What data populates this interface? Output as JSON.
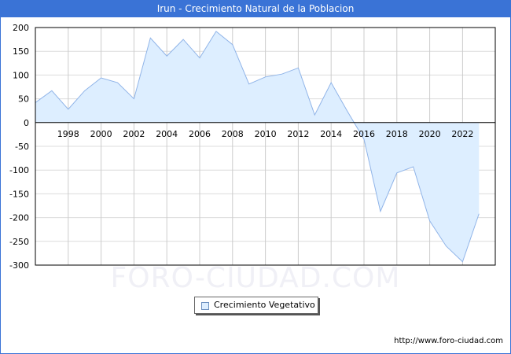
{
  "header": {
    "title": "Irun - Crecimiento Natural de la Poblacion"
  },
  "watermark": "FORO-CIUDAD.COM",
  "footer": {
    "url": "http://www.foro-ciudad.com"
  },
  "legend": {
    "label": "Crecimiento Vegetativo"
  },
  "colors": {
    "titlebar": "#3a73d6",
    "line": "#90b4e8",
    "fill": "#ddeeff"
  },
  "chart_data": {
    "type": "area",
    "title": "Irun - Crecimiento Natural de la Poblacion",
    "xlabel": "",
    "ylabel": "",
    "ylim": [
      -300,
      200
    ],
    "yticks": [
      200,
      150,
      100,
      50,
      0,
      -50,
      -100,
      -150,
      -200,
      -250,
      -300
    ],
    "xticks": [
      1998,
      2000,
      2002,
      2004,
      2006,
      2008,
      2010,
      2012,
      2014,
      2016,
      2018,
      2020,
      2022
    ],
    "grid": true,
    "legend_position": "bottom",
    "series": [
      {
        "name": "Crecimiento Vegetativo",
        "x": [
          1996,
          1997,
          1998,
          1999,
          2000,
          2001,
          2002,
          2003,
          2004,
          2005,
          2006,
          2007,
          2008,
          2009,
          2010,
          2011,
          2012,
          2013,
          2014,
          2015,
          2016,
          2017,
          2018,
          2019,
          2020,
          2021,
          2022,
          2023
        ],
        "values": [
          42,
          67,
          28,
          67,
          94,
          84,
          50,
          178,
          140,
          175,
          136,
          192,
          164,
          81,
          96,
          102,
          115,
          16,
          84,
          23,
          -35,
          -187,
          -106,
          -93,
          -207,
          -260,
          -293,
          -192
        ]
      }
    ]
  }
}
